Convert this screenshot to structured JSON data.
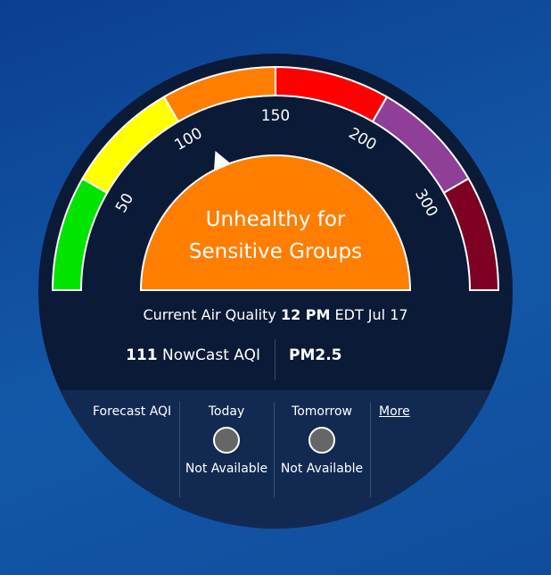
{
  "gauge": {
    "segments": [
      {
        "from": 0,
        "to": 50,
        "color": "#00e400"
      },
      {
        "from": 50,
        "to": 100,
        "color": "#ffff00"
      },
      {
        "from": 100,
        "to": 150,
        "color": "#ff7e00"
      },
      {
        "from": 150,
        "to": 200,
        "color": "#ff0000"
      },
      {
        "from": 200,
        "to": 300,
        "color": "#8f3f97"
      },
      {
        "from": 300,
        "to": 500,
        "color": "#7e0023"
      }
    ],
    "ticks": [
      50,
      100,
      150,
      200,
      300
    ],
    "category": "Unhealthy for Sensitive Groups",
    "category_color": "#ff7e00"
  },
  "current": {
    "label": "Current Air Quality",
    "time": "12 PM",
    "date": "EDT Jul 17"
  },
  "reading": {
    "aqi": 111,
    "label": "NowCast AQI",
    "pollutant": "PM2.5"
  },
  "forecast": {
    "label": "Forecast AQI",
    "days": [
      {
        "name": "Today",
        "status": "Not Available"
      },
      {
        "name": "Tomorrow",
        "status": "Not Available"
      }
    ],
    "more": "More"
  }
}
